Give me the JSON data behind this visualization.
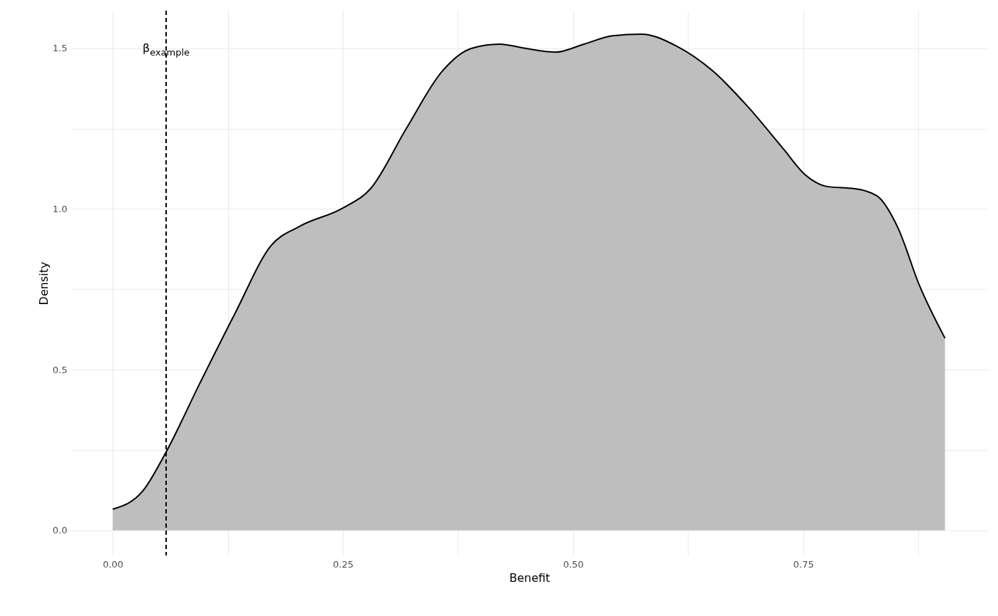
{
  "chart_data": {
    "type": "area",
    "xlabel": "Benefit",
    "ylabel": "Density",
    "color": "#bebebe",
    "x": [
      0,
      0.0325,
      0.058,
      0.094,
      0.133,
      0.172,
      0.203,
      0.25,
      0.28,
      0.319,
      0.358,
      0.389,
      0.42,
      0.45,
      0.481,
      0.512,
      0.543,
      0.574,
      0.613,
      0.652,
      0.69,
      0.729,
      0.752,
      0.776,
      0.806,
      0.83,
      0.853,
      0.876,
      0.904
    ],
    "values": [
      0.066,
      0.122,
      0.244,
      0.454,
      0.676,
      0.886,
      0.946,
      1.003,
      1.063,
      1.251,
      1.429,
      1.499,
      1.513,
      1.499,
      1.488,
      1.513,
      1.539,
      1.544,
      1.506,
      1.429,
      1.318,
      1.185,
      1.107,
      1.07,
      1.063,
      1.041,
      0.941,
      0.764,
      0.598
    ],
    "xlim": [
      -0.045,
      0.95
    ],
    "ylim": [
      -0.078,
      1.617
    ],
    "xticks": [
      {
        "value": 0,
        "label": "0.00"
      },
      {
        "value": 0.125,
        "label": null
      },
      {
        "value": 0.25,
        "label": "0.25"
      },
      {
        "value": 0.375,
        "label": null
      },
      {
        "value": 0.5,
        "label": "0.50"
      },
      {
        "value": 0.625,
        "label": null
      },
      {
        "value": 0.75,
        "label": "0.75"
      },
      {
        "value": 0.875,
        "label": null
      }
    ],
    "yticks": [
      {
        "value": 0,
        "label": "0.0"
      },
      {
        "value": 0.25,
        "label": null
      },
      {
        "value": 0.5,
        "label": "0.5"
      },
      {
        "value": 0.75,
        "label": null
      },
      {
        "value": 1,
        "label": "1.0"
      },
      {
        "value": 1.25,
        "label": null
      },
      {
        "value": 1.5,
        "label": "1.5"
      }
    ],
    "grid": true,
    "ref_lines": [
      {
        "axis": "x",
        "value": 0.058,
        "line_style": "dashed",
        "color": "#000000"
      }
    ],
    "annotations": [
      {
        "text": "β$_{example}$",
        "x": 0.058,
        "y": 1.5
      }
    ]
  }
}
